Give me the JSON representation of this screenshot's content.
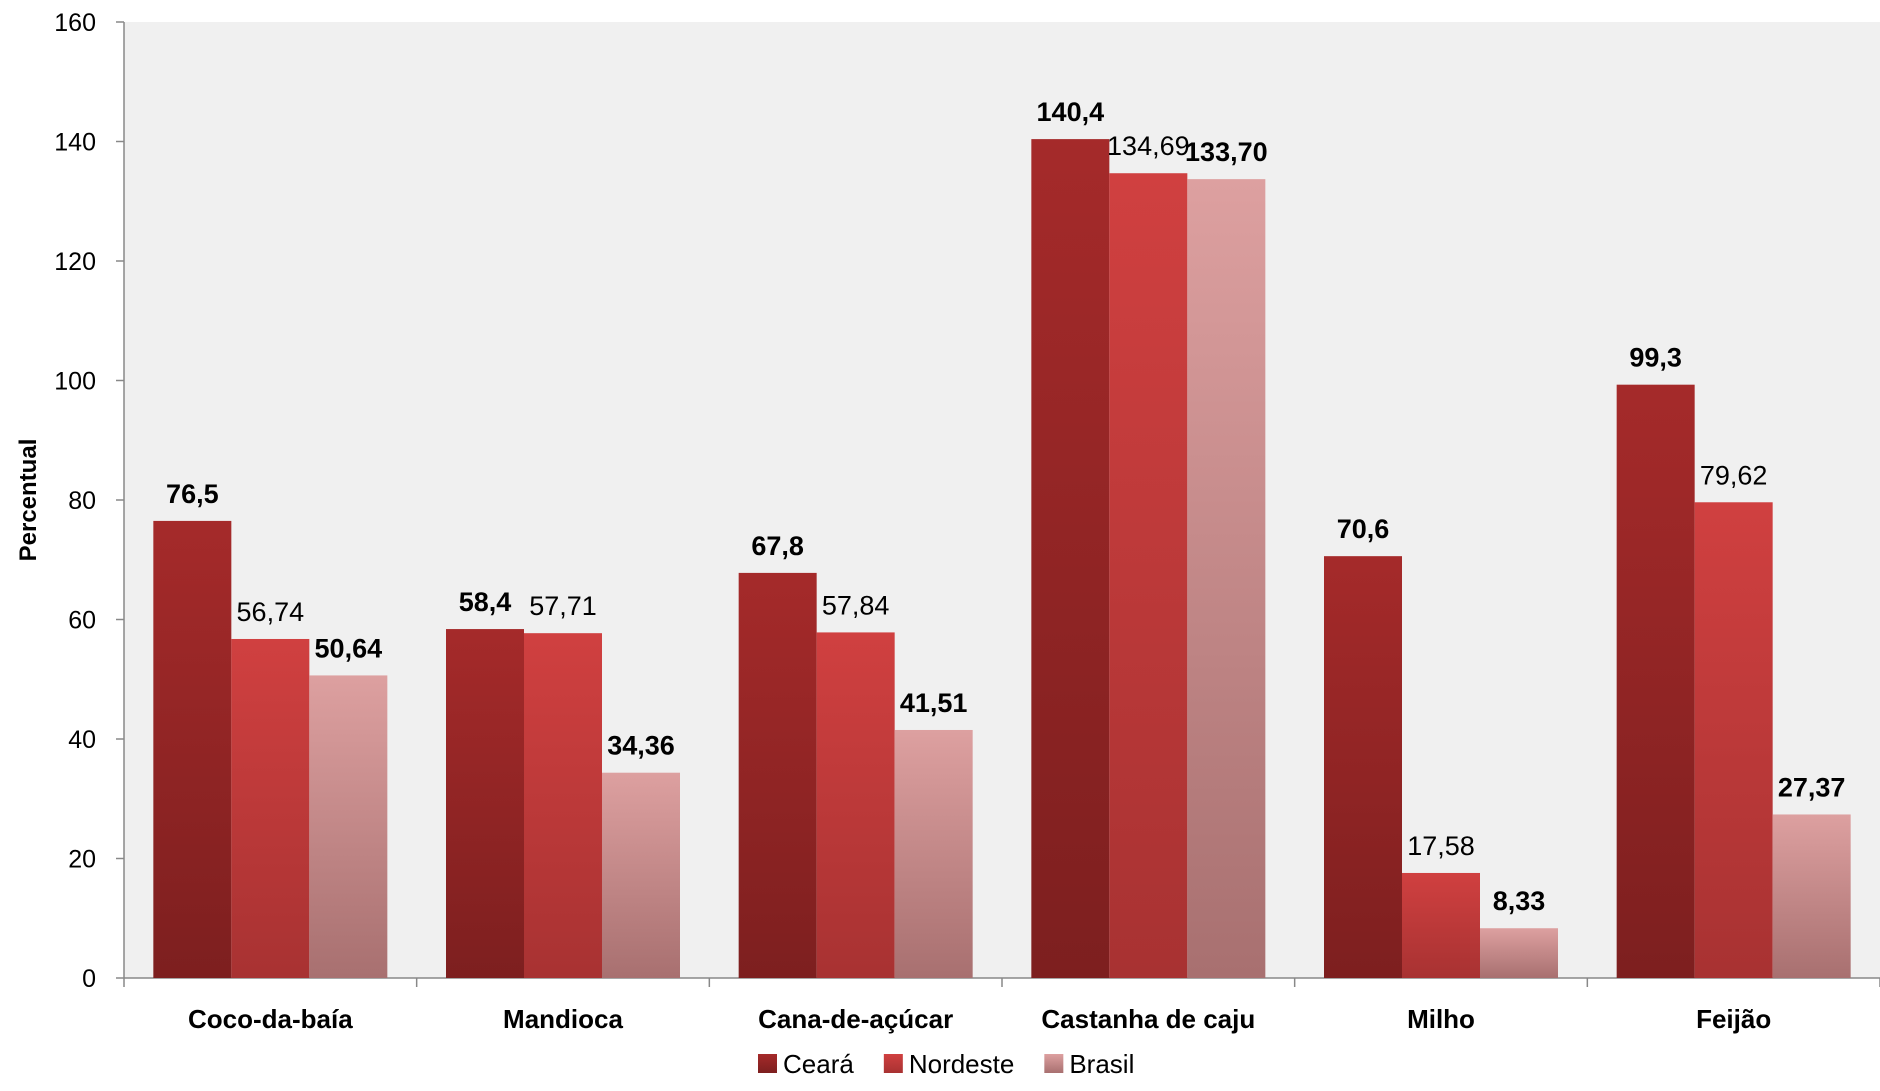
{
  "chart_data": {
    "type": "bar",
    "title": "",
    "xlabel": "",
    "ylabel": "Percentual",
    "ylim": [
      0,
      160
    ],
    "yticks": [
      0,
      20,
      40,
      60,
      80,
      100,
      120,
      140,
      160
    ],
    "categories": [
      "Coco-da-baía",
      "Mandioca",
      "Cana-de-açúcar",
      "Castanha de caju",
      "Milho",
      "Feijão"
    ],
    "series": [
      {
        "name": "Ceará",
        "values": [
          76.5,
          58.4,
          67.8,
          140.4,
          70.6,
          99.3
        ],
        "labels": [
          "76,5",
          "58,4",
          "67,8",
          "140,4",
          "70,6",
          "99,3"
        ],
        "label_bold": true,
        "color_top": "#a52a2a",
        "color_bottom": "#7d1f1f"
      },
      {
        "name": "Nordeste",
        "values": [
          56.74,
          57.71,
          57.84,
          134.69,
          17.58,
          79.62
        ],
        "labels": [
          "56,74",
          "57,71",
          "57,84",
          "134,69",
          "17,58",
          "79,62"
        ],
        "label_bold": false,
        "color_top": "#d04040",
        "color_bottom": "#a83232"
      },
      {
        "name": "Brasil",
        "values": [
          50.64,
          34.36,
          41.51,
          133.7,
          8.33,
          27.37
        ],
        "labels": [
          "50,64",
          "34,36",
          "41,51",
          "133,70",
          "8,33",
          "27,37"
        ],
        "label_bold": true,
        "color_top": "#dda0a0",
        "color_bottom": "#a87070"
      }
    ],
    "grid": false,
    "legend": "bottom-center",
    "plot_background": "#f0f0f0"
  }
}
